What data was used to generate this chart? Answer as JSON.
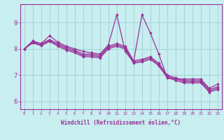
{
  "title": "",
  "xlabel": "Windchill (Refroidissement éolien,°C)",
  "ylabel": "",
  "background_color": "#c8eef0",
  "grid_color": "#aad4d8",
  "line_color": "#993399",
  "xlim": [
    -0.5,
    23.5
  ],
  "ylim": [
    5.7,
    9.7
  ],
  "xticks": [
    0,
    1,
    2,
    3,
    4,
    5,
    6,
    7,
    8,
    9,
    10,
    11,
    12,
    13,
    14,
    15,
    16,
    17,
    18,
    19,
    20,
    21,
    22,
    23
  ],
  "yticks": [
    6,
    7,
    8,
    9
  ],
  "series": [
    [
      8.0,
      8.3,
      8.2,
      8.5,
      8.25,
      8.1,
      8.0,
      7.9,
      7.85,
      7.8,
      8.15,
      9.3,
      7.9,
      7.5,
      9.3,
      8.6,
      7.8,
      6.9,
      6.85,
      6.85,
      6.85,
      6.85,
      6.5,
      6.65
    ],
    [
      8.0,
      8.28,
      8.2,
      8.35,
      8.2,
      8.05,
      7.95,
      7.8,
      7.8,
      7.75,
      8.1,
      8.2,
      8.1,
      7.55,
      7.6,
      7.7,
      7.45,
      7.0,
      6.9,
      6.8,
      6.8,
      6.8,
      6.45,
      6.55
    ],
    [
      8.0,
      8.25,
      8.15,
      8.32,
      8.15,
      8.0,
      7.9,
      7.75,
      7.75,
      7.7,
      8.05,
      8.15,
      8.05,
      7.5,
      7.55,
      7.65,
      7.4,
      6.95,
      6.85,
      6.75,
      6.75,
      6.75,
      6.4,
      6.5
    ],
    [
      8.0,
      8.22,
      8.12,
      8.28,
      8.1,
      7.95,
      7.85,
      7.7,
      7.7,
      7.65,
      8.0,
      8.1,
      8.0,
      7.45,
      7.5,
      7.6,
      7.35,
      6.9,
      6.8,
      6.7,
      6.7,
      6.7,
      6.35,
      6.45
    ]
  ]
}
